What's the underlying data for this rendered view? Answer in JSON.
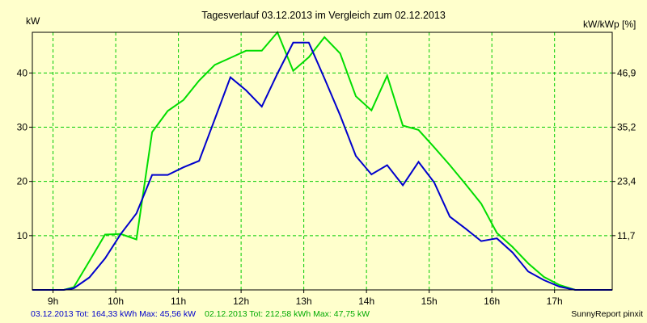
{
  "chart_data": {
    "type": "line",
    "title": "Tagesverlauf 03.12.2013 im Vergleich zum 02.12.2013",
    "left_unit": "kW",
    "right_unit": "kW/kWp [%]",
    "x_ticks": [
      "9h",
      "10h",
      "11h",
      "12h",
      "13h",
      "14h",
      "15h",
      "16h",
      "17h"
    ],
    "x_tick_values": [
      9,
      10,
      11,
      12,
      13,
      14,
      15,
      16,
      17
    ],
    "xlim": [
      8.67,
      17.92
    ],
    "ylim": [
      0,
      47.5
    ],
    "y_ticks": [
      10,
      20,
      30,
      40
    ],
    "y_ticks_right": [
      "11,7",
      "23,4",
      "35,2",
      "46,9"
    ],
    "grid": true,
    "series": [
      {
        "name": "03.12.2013",
        "color": "#0000cc",
        "x": [
          8.67,
          9.0,
          9.17,
          9.33,
          9.58,
          9.83,
          10.08,
          10.33,
          10.58,
          10.83,
          11.08,
          11.33,
          11.58,
          11.83,
          12.08,
          12.33,
          12.58,
          12.83,
          13.08,
          13.33,
          13.58,
          13.83,
          14.08,
          14.33,
          14.58,
          14.83,
          15.08,
          15.33,
          15.58,
          15.83,
          16.08,
          16.33,
          16.58,
          16.83,
          17.08,
          17.33,
          17.58,
          17.92
        ],
        "values": [
          0,
          0,
          0,
          0.3,
          2.3,
          5.8,
          10.3,
          14.1,
          21.2,
          21.2,
          22.6,
          23.8,
          31.5,
          39.2,
          36.8,
          33.8,
          39.9,
          45.6,
          45.6,
          39.0,
          32.2,
          24.7,
          21.3,
          23.0,
          19.3,
          23.6,
          19.8,
          13.5,
          11.3,
          9.0,
          9.5,
          6.9,
          3.4,
          1.8,
          0.6,
          0,
          0,
          0
        ]
      },
      {
        "name": "02.12.2013",
        "color": "#00dd00",
        "x": [
          8.67,
          9.0,
          9.17,
          9.33,
          9.58,
          9.83,
          10.08,
          10.33,
          10.58,
          10.83,
          11.08,
          11.33,
          11.58,
          11.83,
          12.08,
          12.33,
          12.58,
          12.83,
          13.08,
          13.33,
          13.58,
          13.83,
          14.08,
          14.33,
          14.58,
          14.83,
          15.08,
          15.33,
          15.58,
          15.83,
          16.08,
          16.33,
          16.58,
          16.83,
          17.08,
          17.33,
          17.58,
          17.92
        ],
        "values": [
          0,
          0,
          0,
          0.5,
          5.3,
          10.2,
          10.3,
          9.3,
          29.1,
          33.0,
          35.0,
          38.6,
          41.5,
          42.8,
          44.1,
          44.1,
          47.5,
          40.4,
          42.9,
          46.6,
          43.6,
          35.7,
          33.1,
          39.5,
          30.3,
          29.5,
          26.3,
          23.0,
          19.5,
          15.9,
          10.5,
          7.9,
          4.9,
          2.4,
          0.9,
          0,
          0,
          0
        ]
      }
    ]
  },
  "footer": {
    "summary_blue": "03.12.2013 Tot: 164,33 kWh Max: 45,56 kW",
    "summary_green": "02.12.2013 Tot: 212,58 kWh Max: 47,75 kW",
    "brand": "SunnyReport pinxit"
  }
}
